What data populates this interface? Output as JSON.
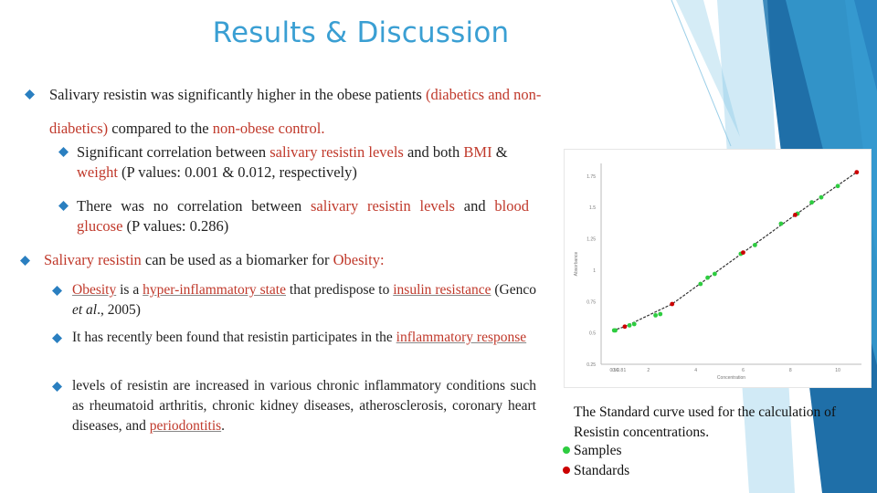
{
  "slide": {
    "title": "Results & Discussion",
    "p1": {
      "a": "Salivary resistin was significantly higher in the obese patients ",
      "b": "(diabetics and non-",
      "c": "diabetics)",
      "d": " compared to the ",
      "e": "non-obese control.",
      "sub1": {
        "a": "Significant correlation between ",
        "b": "salivary resistin levels",
        "c": " and both ",
        "d": "BMI",
        "e": " & ",
        "f": "weight",
        "g": " (P values: 0.001 & 0.012, respectively)"
      },
      "sub2": {
        "a": "There was no correlation between ",
        "b": "salivary resistin levels",
        "c": " and ",
        "d": "blood glucose",
        "e": " (P values: 0.286)"
      }
    },
    "p2": {
      "a": "Salivary resistin",
      "b": " can be used as a biomarker for ",
      "c": "Obesity:",
      "sub1": {
        "a": "Obesity",
        "b": " is a ",
        "c": "hyper-inflammatory state",
        "d": " that predispose to ",
        "e": "insulin resistance",
        "f": " (Genco ",
        "g": "et al",
        "h": "., 2005)"
      },
      "sub2": {
        "a": "It has recently been found that resistin participates in the ",
        "b": "inflammatory response"
      },
      "sub3": {
        "a": "levels of resistin are increased in various chronic inflammatory conditions such as rheumatoid arthritis, chronic kidney diseases, atherosclerosis, coronary heart diseases, and ",
        "b": "periodontitis",
        "c": "."
      }
    },
    "caption": "The Standard curve used for the calculation of Resistin concentrations.",
    "legend": [
      {
        "label": "Samples",
        "color": "#2ecc40"
      },
      {
        "label": "Standards",
        "color": "#cc0000"
      }
    ]
  },
  "chart_data": {
    "type": "scatter",
    "title": "",
    "xlabel": "Concentration",
    "ylabel": "Absorbance",
    "x_ticks": [
      "0.5",
      "0.6",
      "0.8",
      "1",
      "2",
      "4",
      "6",
      "8",
      "10"
    ],
    "y_ticks": [
      "0.25",
      "0.5",
      "0.75",
      "1",
      "1.25",
      "1.5",
      "1.75"
    ],
    "ylim": [
      0.25,
      1.85
    ],
    "grid": false,
    "series": [
      {
        "name": "Samples",
        "color": "#2ecc40",
        "points": [
          [
            0.55,
            0.52
          ],
          [
            0.6,
            0.52
          ],
          [
            1.2,
            0.56
          ],
          [
            1.4,
            0.57
          ],
          [
            2.3,
            0.64
          ],
          [
            2.5,
            0.65
          ],
          [
            4.2,
            0.89
          ],
          [
            4.5,
            0.94
          ],
          [
            4.8,
            0.97
          ],
          [
            5.9,
            1.13
          ],
          [
            6.5,
            1.2
          ],
          [
            7.6,
            1.37
          ],
          [
            8.3,
            1.45
          ],
          [
            8.9,
            1.54
          ],
          [
            9.3,
            1.58
          ],
          [
            10.0,
            1.67
          ]
        ]
      },
      {
        "name": "Standards",
        "color": "#cc0000",
        "points": [
          [
            1.0,
            0.55
          ],
          [
            3.0,
            0.73
          ],
          [
            6.0,
            1.14
          ],
          [
            8.2,
            1.44
          ],
          [
            10.8,
            1.78
          ]
        ]
      }
    ]
  }
}
